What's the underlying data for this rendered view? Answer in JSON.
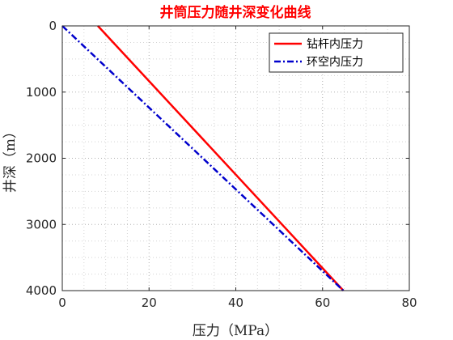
{
  "chart_data": {
    "type": "line",
    "title": "井筒压力随井深变化曲线",
    "title_color": "#ff0000",
    "xlabel": "压力（MPa）",
    "ylabel": "井深（m）",
    "xlim": [
      0,
      80
    ],
    "ylim": [
      0,
      4000
    ],
    "y_reversed": true,
    "xticks": [
      0,
      20,
      40,
      60,
      80
    ],
    "yticks": [
      0,
      1000,
      2000,
      3000,
      4000
    ],
    "xtick_labels": [
      "0",
      "20",
      "40",
      "60",
      "80"
    ],
    "ytick_labels": [
      "0",
      "1000",
      "2000",
      "3000",
      "4000"
    ],
    "grid": "dotted, major and minor",
    "legend_position": "top-right",
    "series": [
      {
        "name": "钻杆内压力",
        "color": "#ff0000",
        "line_style": "solid",
        "points": [
          {
            "x": 8.2,
            "y": 0
          },
          {
            "x": 64.8,
            "y": 4000
          }
        ]
      },
      {
        "name": "环空内压力",
        "color": "#0000cc",
        "line_style": "dash-dot",
        "points": [
          {
            "x": 0,
            "y": 0
          },
          {
            "x": 64.8,
            "y": 4000
          }
        ]
      }
    ]
  }
}
